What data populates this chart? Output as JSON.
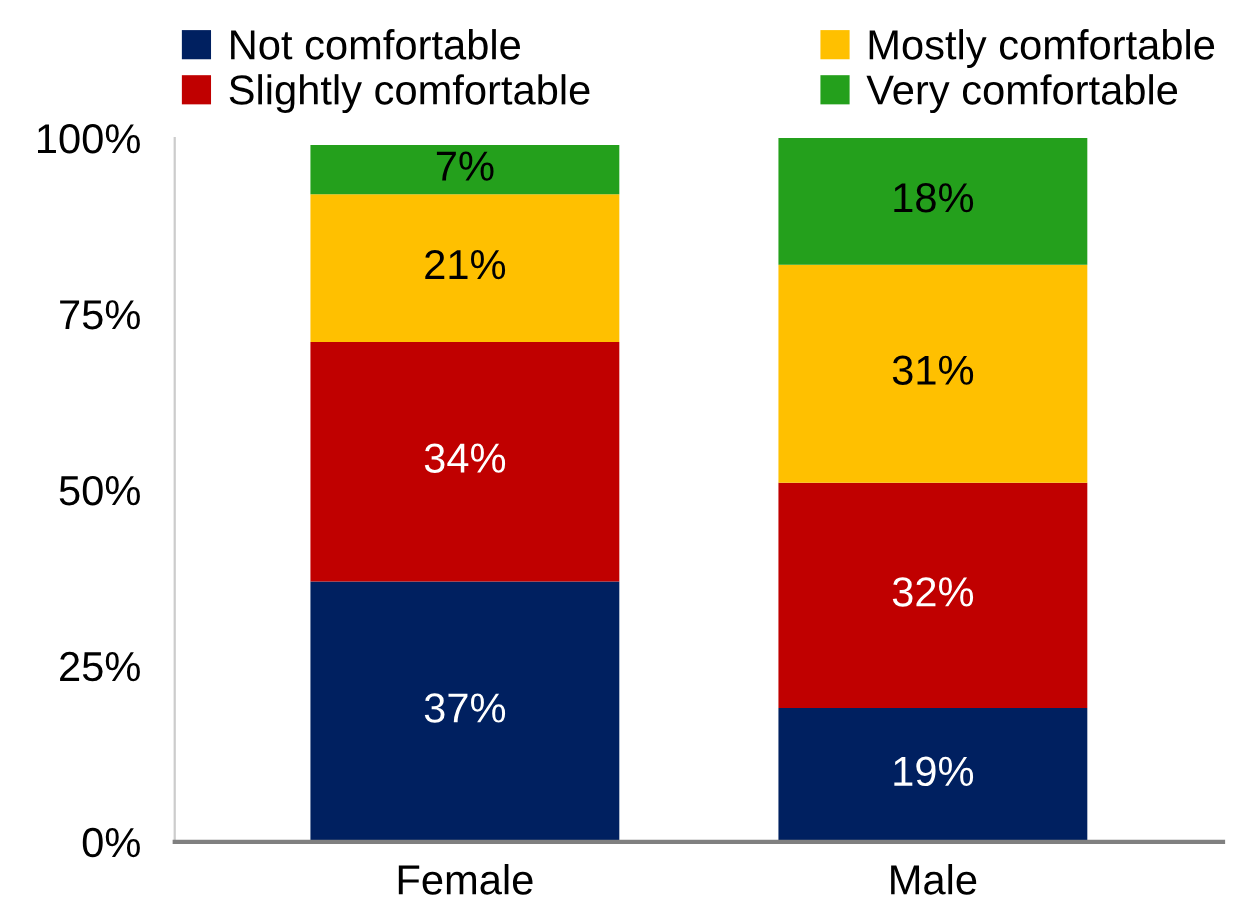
{
  "chart_data": {
    "type": "bar",
    "stacked": true,
    "categories": [
      "Female",
      "Male"
    ],
    "series": [
      {
        "name": "Not comfortable",
        "color": "#002060",
        "values": [
          37,
          19
        ],
        "value_labels": [
          "37%",
          "19%"
        ]
      },
      {
        "name": "Slightly comfortable",
        "color": "#c00000",
        "values": [
          34,
          32
        ],
        "value_labels": [
          "34%",
          "32%"
        ]
      },
      {
        "name": "Mostly comfortable",
        "color": "#ffc000",
        "values": [
          21,
          31
        ],
        "value_labels": [
          "21%",
          "31%"
        ]
      },
      {
        "name": "Very comfortable",
        "color": "#24a01c",
        "values": [
          7,
          18
        ],
        "value_labels": [
          "7%",
          "18%"
        ]
      }
    ],
    "ylim": [
      0,
      100
    ],
    "yticks": [
      {
        "value": 0,
        "label": "0%"
      },
      {
        "value": 25,
        "label": "25%"
      },
      {
        "value": 50,
        "label": "50%"
      },
      {
        "value": 75,
        "label": "75%"
      },
      {
        "value": 100,
        "label": "100%"
      }
    ],
    "grid": false,
    "legend": "top"
  }
}
